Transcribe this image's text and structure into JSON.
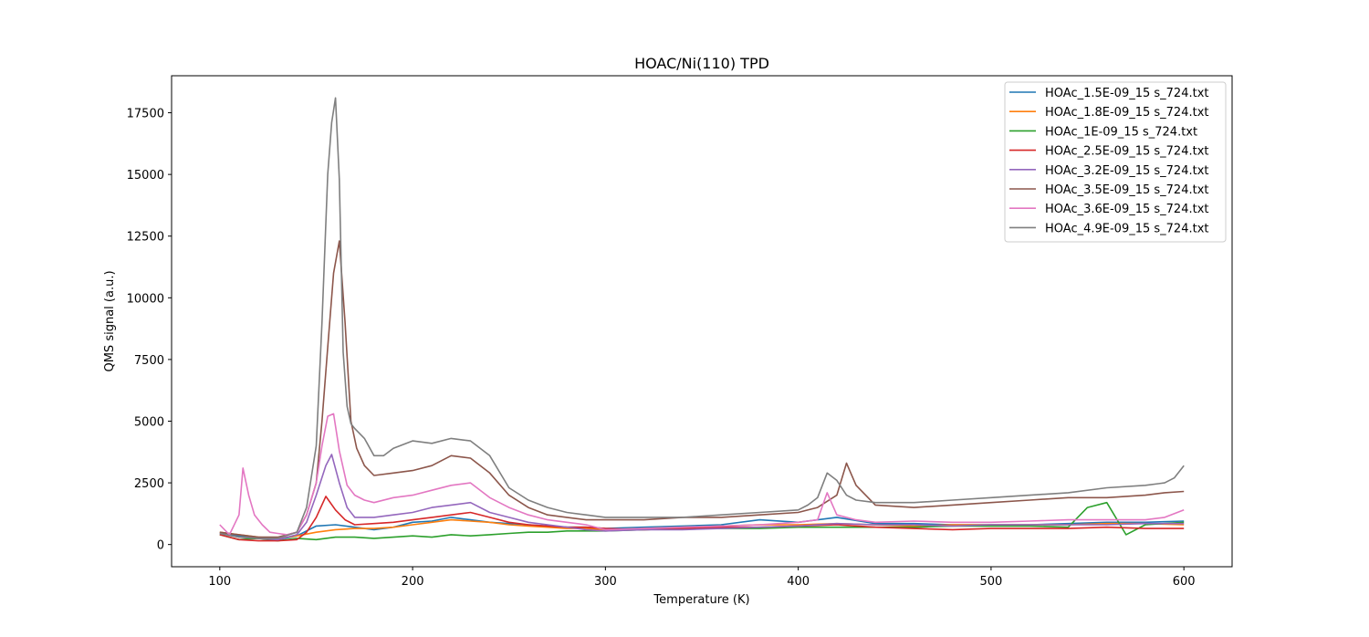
{
  "chart_data": {
    "type": "line",
    "title": "HOAC/Ni(110) TPD",
    "xlabel": "Temperature (K)",
    "ylabel": "QMS signal (a.u.)",
    "xlim": [
      75,
      625
    ],
    "ylim": [
      -900,
      19000
    ],
    "x_ticks": [
      100,
      200,
      300,
      400,
      500,
      600
    ],
    "y_ticks": [
      0,
      2500,
      5000,
      7500,
      10000,
      12500,
      15000,
      17500
    ],
    "grid": false,
    "legend_position": "top-right",
    "series": [
      {
        "name": "HOAc_1.5E-09_15 s_724.txt",
        "color": "#1f77b4",
        "x": [
          100,
          110,
          120,
          130,
          140,
          150,
          160,
          170,
          180,
          190,
          200,
          210,
          220,
          230,
          240,
          250,
          260,
          270,
          280,
          290,
          300,
          320,
          340,
          360,
          380,
          400,
          420,
          440,
          460,
          480,
          500,
          520,
          540,
          560,
          580,
          600
        ],
        "y": [
          450,
          350,
          250,
          200,
          350,
          750,
          800,
          700,
          600,
          700,
          900,
          950,
          1100,
          1000,
          900,
          850,
          800,
          750,
          700,
          700,
          650,
          700,
          750,
          800,
          1000,
          900,
          1100,
          850,
          850,
          800,
          800,
          800,
          850,
          900,
          900,
          950
        ]
      },
      {
        "name": "HOAc_1.8E-09_15 s_724.txt",
        "color": "#ff7f0e",
        "x": [
          100,
          110,
          120,
          130,
          140,
          150,
          160,
          170,
          180,
          190,
          200,
          210,
          220,
          230,
          240,
          250,
          260,
          270,
          280,
          290,
          300,
          320,
          340,
          360,
          380,
          400,
          420,
          440,
          460,
          480,
          500,
          520,
          540,
          560,
          580,
          600
        ],
        "y": [
          500,
          400,
          300,
          250,
          350,
          500,
          600,
          650,
          650,
          700,
          800,
          900,
          1000,
          950,
          900,
          800,
          750,
          700,
          650,
          650,
          600,
          650,
          700,
          750,
          800,
          800,
          850,
          800,
          750,
          800,
          800,
          800,
          800,
          850,
          850,
          800
        ]
      },
      {
        "name": "HOAc_1E-09_15 s_724.txt",
        "color": "#2ca02c",
        "x": [
          100,
          110,
          120,
          130,
          140,
          150,
          160,
          170,
          180,
          190,
          200,
          210,
          220,
          230,
          240,
          250,
          260,
          270,
          280,
          290,
          300,
          320,
          340,
          360,
          380,
          400,
          420,
          440,
          460,
          480,
          500,
          520,
          540,
          550,
          560,
          570,
          580,
          600
        ],
        "y": [
          400,
          200,
          250,
          150,
          250,
          200,
          300,
          300,
          250,
          300,
          350,
          300,
          400,
          350,
          400,
          450,
          500,
          500,
          550,
          550,
          550,
          600,
          650,
          650,
          650,
          700,
          700,
          700,
          700,
          750,
          750,
          750,
          700,
          1500,
          1700,
          400,
          800,
          900
        ]
      },
      {
        "name": "HOAc_2.5E-09_15 s_724.txt",
        "color": "#d62728",
        "x": [
          100,
          110,
          120,
          130,
          140,
          145,
          150,
          155,
          160,
          165,
          170,
          180,
          190,
          200,
          210,
          220,
          230,
          240,
          250,
          260,
          270,
          280,
          290,
          300,
          320,
          340,
          360,
          380,
          400,
          420,
          440,
          460,
          480,
          500,
          520,
          540,
          560,
          580,
          600
        ],
        "y": [
          400,
          200,
          150,
          150,
          200,
          500,
          1100,
          1950,
          1400,
          1000,
          800,
          850,
          900,
          1000,
          1100,
          1200,
          1300,
          1100,
          900,
          800,
          750,
          700,
          700,
          650,
          600,
          650,
          700,
          700,
          750,
          800,
          700,
          650,
          600,
          650,
          650,
          650,
          700,
          650,
          650
        ]
      },
      {
        "name": "HOAc_3.2E-09_15 s_724.txt",
        "color": "#9467bd",
        "x": [
          100,
          110,
          120,
          130,
          140,
          145,
          150,
          155,
          158,
          162,
          166,
          170,
          180,
          190,
          200,
          210,
          220,
          230,
          240,
          250,
          260,
          270,
          280,
          290,
          300,
          320,
          340,
          360,
          380,
          400,
          420,
          440,
          460,
          480,
          500,
          520,
          540,
          560,
          580,
          600
        ],
        "y": [
          450,
          300,
          250,
          200,
          400,
          900,
          2000,
          3200,
          3650,
          2500,
          1500,
          1100,
          1100,
          1200,
          1300,
          1500,
          1600,
          1700,
          1300,
          1100,
          900,
          800,
          700,
          600,
          550,
          600,
          600,
          650,
          700,
          750,
          850,
          800,
          800,
          750,
          800,
          800,
          800,
          800,
          850,
          850
        ]
      },
      {
        "name": "HOAc_3.5E-09_15 s_724.txt",
        "color": "#8c564b",
        "x": [
          100,
          110,
          120,
          130,
          140,
          145,
          150,
          153,
          156,
          159,
          162,
          165,
          168,
          171,
          175,
          180,
          190,
          200,
          210,
          220,
          230,
          240,
          250,
          260,
          270,
          280,
          290,
          300,
          320,
          340,
          360,
          380,
          400,
          410,
          420,
          425,
          430,
          440,
          460,
          480,
          500,
          520,
          540,
          560,
          580,
          590,
          600
        ],
        "y": [
          500,
          400,
          300,
          300,
          500,
          1200,
          2500,
          5000,
          8000,
          11000,
          12300,
          9000,
          5000,
          3900,
          3200,
          2800,
          2900,
          3000,
          3200,
          3600,
          3500,
          2900,
          2000,
          1500,
          1200,
          1100,
          1000,
          1000,
          1000,
          1100,
          1100,
          1200,
          1300,
          1500,
          2000,
          3300,
          2400,
          1600,
          1500,
          1600,
          1700,
          1800,
          1900,
          1900,
          2000,
          2100,
          2150
        ]
      },
      {
        "name": "HOAc_3.6E-09_15 s_724.txt",
        "color": "#e377c2",
        "x": [
          100,
          105,
          110,
          112,
          115,
          118,
          122,
          126,
          130,
          135,
          140,
          145,
          150,
          153,
          156,
          159,
          162,
          166,
          170,
          175,
          180,
          190,
          200,
          210,
          220,
          230,
          240,
          250,
          260,
          270,
          280,
          290,
          300,
          320,
          340,
          360,
          380,
          400,
          410,
          415,
          420,
          430,
          440,
          460,
          480,
          500,
          520,
          540,
          560,
          580,
          590,
          600
        ],
        "y": [
          800,
          400,
          1200,
          3100,
          2000,
          1200,
          800,
          500,
          450,
          400,
          500,
          1200,
          2500,
          4000,
          5200,
          5300,
          3800,
          2400,
          2000,
          1800,
          1700,
          1900,
          2000,
          2200,
          2400,
          2500,
          1900,
          1500,
          1200,
          1000,
          900,
          800,
          600,
          650,
          700,
          750,
          800,
          900,
          1000,
          2100,
          1200,
          1000,
          900,
          950,
          900,
          900,
          950,
          1000,
          1000,
          1000,
          1100,
          1400
        ]
      },
      {
        "name": "HOAc_4.9E-09_15 s_724.txt",
        "color": "#7f7f7f",
        "x": [
          100,
          110,
          120,
          130,
          140,
          145,
          150,
          153,
          156,
          158,
          160,
          162,
          164,
          166,
          168,
          170,
          175,
          180,
          185,
          190,
          200,
          210,
          220,
          230,
          240,
          250,
          260,
          270,
          280,
          290,
          300,
          320,
          340,
          360,
          380,
          400,
          405,
          410,
          415,
          420,
          425,
          430,
          440,
          460,
          480,
          500,
          520,
          540,
          560,
          580,
          590,
          595,
          600
        ],
        "y": [
          450,
          300,
          250,
          250,
          500,
          1500,
          4000,
          9000,
          15000,
          17100,
          18100,
          14800,
          7800,
          5600,
          4900,
          4700,
          4300,
          3600,
          3600,
          3900,
          4200,
          4100,
          4300,
          4200,
          3600,
          2300,
          1800,
          1500,
          1300,
          1200,
          1100,
          1100,
          1100,
          1200,
          1300,
          1400,
          1600,
          1900,
          2900,
          2600,
          2000,
          1800,
          1700,
          1700,
          1800,
          1900,
          2000,
          2100,
          2300,
          2400,
          2500,
          2700,
          3200
        ]
      }
    ]
  }
}
